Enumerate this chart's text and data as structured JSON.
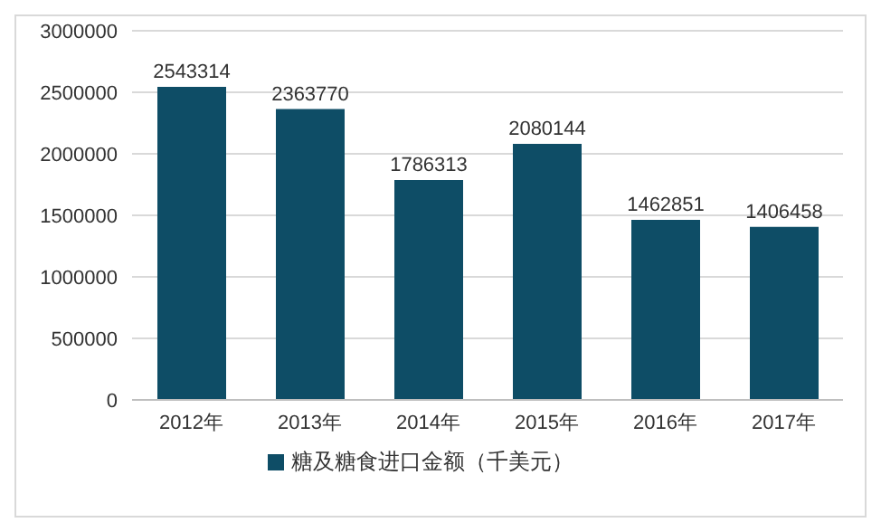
{
  "chart_data": {
    "type": "bar",
    "categories": [
      "2012年",
      "2013年",
      "2014年",
      "2015年",
      "2016年",
      "2017年"
    ],
    "series": [
      {
        "name": "糖及糖食进口金额（千美元）",
        "color": "#0e4d66",
        "values": [
          2543314,
          2363770,
          1786313,
          2080144,
          1462851,
          1406458
        ]
      }
    ],
    "ylim": [
      0,
      3000000
    ],
    "yticks": [
      0,
      500000,
      1000000,
      1500000,
      2000000,
      2500000,
      3000000
    ],
    "grid": "y",
    "legend": "bottom",
    "data_labels": true
  }
}
